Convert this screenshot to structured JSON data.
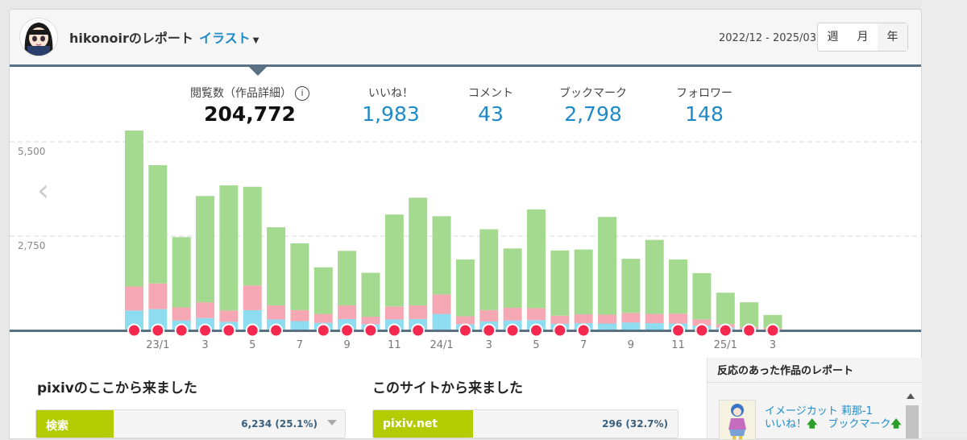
{
  "header": {
    "title": "hikonoirのレポート",
    "category": "イラスト",
    "date_range": "2022/12 - 2025/03",
    "periods": [
      "週",
      "月",
      "年"
    ]
  },
  "stats": [
    {
      "label": "閲覧数（作品詳細）",
      "value": "204,772"
    },
    {
      "label": "いいね！",
      "value": "1,983"
    },
    {
      "label": "コメント",
      "value": "43"
    },
    {
      "label": "ブックマーク",
      "value": "2,798"
    },
    {
      "label": "フォロワー",
      "value": "148"
    }
  ],
  "chart_data": {
    "type": "bar",
    "ylim": [
      0,
      5500
    ],
    "y_ticks": [
      "5,500",
      "2,750"
    ],
    "x_tick_labels": [
      "23/1",
      "3",
      "5",
      "7",
      "9",
      "11",
      "24/1",
      "3",
      "5",
      "7",
      "9",
      "11",
      "25/1",
      "3"
    ],
    "series": [
      {
        "values": [
          5520,
          3450,
          2050,
          3100,
          3650,
          2880,
          2280,
          1950,
          1360,
          1590,
          1280,
          2680,
          3140,
          2280,
          1660,
          2360,
          1730,
          2880,
          1900,
          1890,
          2850,
          1580,
          2160,
          1580,
          1350,
          920,
          720,
          380
        ]
      },
      {
        "values": [
          700,
          750,
          380,
          460,
          330,
          720,
          410,
          320,
          260,
          400,
          220,
          380,
          400,
          570,
          230,
          330,
          370,
          350,
          240,
          260,
          260,
          280,
          270,
          290,
          180,
          100,
          60,
          40
        ]
      },
      {
        "values": [
          580,
          620,
          290,
          360,
          250,
          590,
          320,
          270,
          220,
          330,
          180,
          320,
          330,
          480,
          180,
          260,
          290,
          300,
          190,
          210,
          200,
          230,
          210,
          200,
          140,
          80,
          40,
          30
        ]
      }
    ],
    "colors": {
      "views": "#a3da8f",
      "likes": "#f5a8b3",
      "bookmarks": "#8ddcf0",
      "marker": "#f5294f",
      "baseline": "#5a7183"
    }
  },
  "sources": {
    "pixiv": {
      "title": "pixivのここから来ました",
      "top": {
        "name": "検索",
        "value": "6,234 (25.1%)",
        "share": 0.251
      }
    },
    "sites": {
      "title": "このサイトから来ました",
      "top": {
        "name": "pixiv.net",
        "value": "296 (32.7%)",
        "share": 0.327
      }
    }
  },
  "side": {
    "title": "反応のあった作品のレポート",
    "work": {
      "title": "イメージカット 莉那-1",
      "likes": "いいね！",
      "bookmarks": "ブックマーク"
    }
  }
}
